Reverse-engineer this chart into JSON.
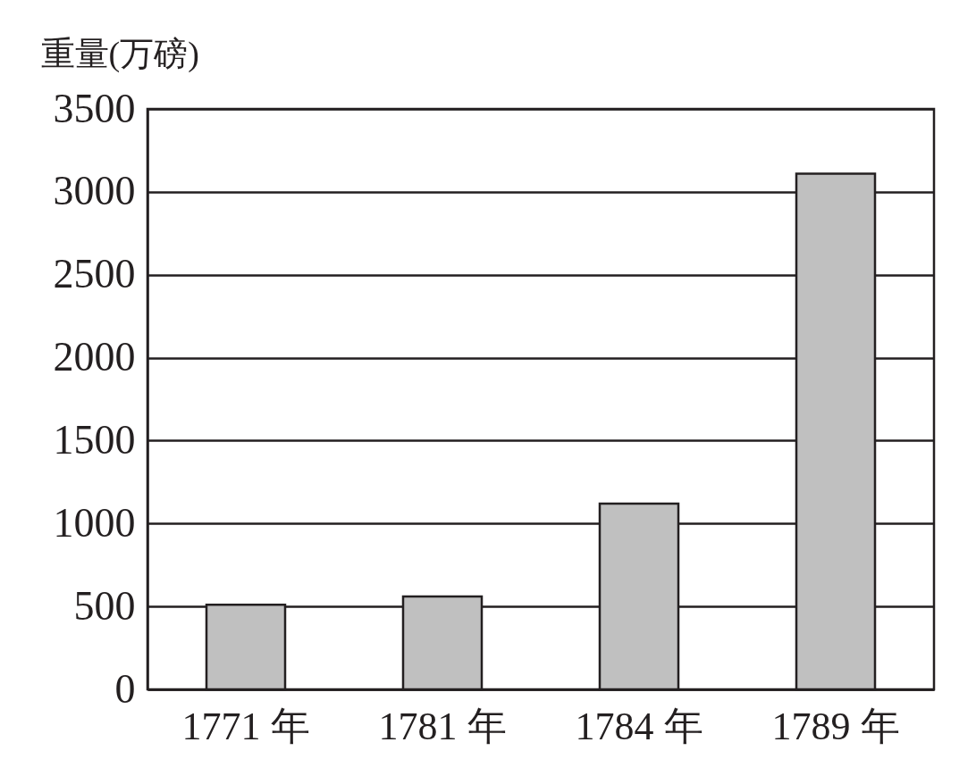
{
  "chart_data": {
    "type": "bar",
    "ylabel": "重量(万磅)",
    "categories": [
      "1771 年",
      "1781 年",
      "1784 年",
      "1789 年"
    ],
    "values": [
      510,
      560,
      1120,
      3110
    ],
    "color": "#c0c0c0",
    "ylim": [
      0,
      3500
    ],
    "yticks": [
      0,
      500,
      1000,
      1500,
      2000,
      2500,
      3000,
      3500
    ],
    "grid": "y"
  }
}
